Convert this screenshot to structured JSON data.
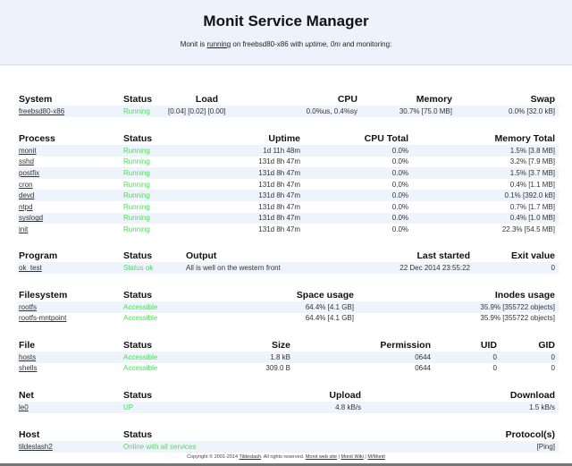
{
  "header": {
    "title": "Monit Service Manager",
    "sub_prefix": "Monit is ",
    "sub_running": "running",
    "sub_mid": " on freebsd80-x86 with ",
    "sub_uptime": "uptime, 0m",
    "sub_suffix": "  and monitoring:"
  },
  "colors": {
    "ok_status": "#4ddc5a",
    "header_bg": "#eef3fb",
    "stripe": "#eef4fb"
  },
  "sections": [
    {
      "key": "system",
      "columns": [
        "System",
        "Status",
        "Load",
        "CPU",
        "Memory",
        "Swap"
      ],
      "rows": [
        [
          "freebsd80-x86",
          "Running",
          "[0.04] [0.02] [0.00]",
          "0.0%us, 0.4%sy",
          "30.7% [75.0 MB]",
          "0.0% [32.0 kB]"
        ]
      ]
    },
    {
      "key": "process",
      "columns": [
        "Process",
        "Status",
        "Uptime",
        "CPU Total",
        "Memory Total"
      ],
      "rows": [
        [
          "monit",
          "Running",
          "1d 11h 48m",
          "0.0%",
          "1.5% [3.8 MB]"
        ],
        [
          "sshd",
          "Running",
          "131d 8h 47m",
          "0.0%",
          "3.2% [7.9 MB]"
        ],
        [
          "postfix",
          "Running",
          "131d 8h 47m",
          "0.0%",
          "1.5% [3.7 MB]"
        ],
        [
          "cron",
          "Running",
          "131d 8h 47m",
          "0.0%",
          "0.4% [1.1 MB]"
        ],
        [
          "devd",
          "Running",
          "131d 8h 47m",
          "0.0%",
          "0.1% [392.0 kB]"
        ],
        [
          "ntpd",
          "Running",
          "131d 8h 47m",
          "0.0%",
          "0.7% [1.7 MB]"
        ],
        [
          "syslogd",
          "Running",
          "131d 8h 47m",
          "0.0%",
          "0.4% [1.0 MB]"
        ],
        [
          "init",
          "Running",
          "131d 8h 47m",
          "0.0%",
          "22.3% [54.5 MB]"
        ]
      ]
    },
    {
      "key": "program",
      "columns": [
        "Program",
        "Status",
        "Output",
        "Last started",
        "Exit value"
      ],
      "rows": [
        [
          "ok_test",
          "Status ok",
          "All is well on the western front",
          "22 Dec 2014 23:55:22",
          "0"
        ]
      ]
    },
    {
      "key": "filesystem",
      "columns": [
        "Filesystem",
        "Status",
        "Space usage",
        "Inodes usage"
      ],
      "rows": [
        [
          "rootfs",
          "Accessible",
          "64.4% [4.1 GB]",
          "35.9% [355722 objects]"
        ],
        [
          "rootfs-mntpoint",
          "Accessible",
          "64.4% [4.1 GB]",
          "35.9% [355722 objects]"
        ]
      ]
    },
    {
      "key": "file",
      "columns": [
        "File",
        "Status",
        "Size",
        "Permission",
        "UID",
        "GID"
      ],
      "rows": [
        [
          "hosts",
          "Accessible",
          "1.8 kB",
          "0644",
          "0",
          "0"
        ],
        [
          "shells",
          "Accessible",
          "309.0 B",
          "0644",
          "0",
          "0"
        ]
      ]
    },
    {
      "key": "net",
      "columns": [
        "Net",
        "Status",
        "Upload",
        "Download"
      ],
      "rows": [
        [
          "le0",
          "UP",
          "4.8 kB/s",
          "1.5 kB/s"
        ]
      ]
    },
    {
      "key": "host",
      "columns": [
        "Host",
        "Status",
        "Protocol(s)"
      ],
      "rows": [
        [
          "tildeslash2",
          "Online with all services",
          "[Ping]"
        ]
      ]
    }
  ],
  "footer": {
    "copyright": "Copyright © 2001-2014 ",
    "company": "Tildeslash",
    "rights": ". All rights reserved.  ",
    "links": [
      "Monit web site",
      "Monit Wiki",
      "M/Monit"
    ],
    "sep": " | "
  }
}
